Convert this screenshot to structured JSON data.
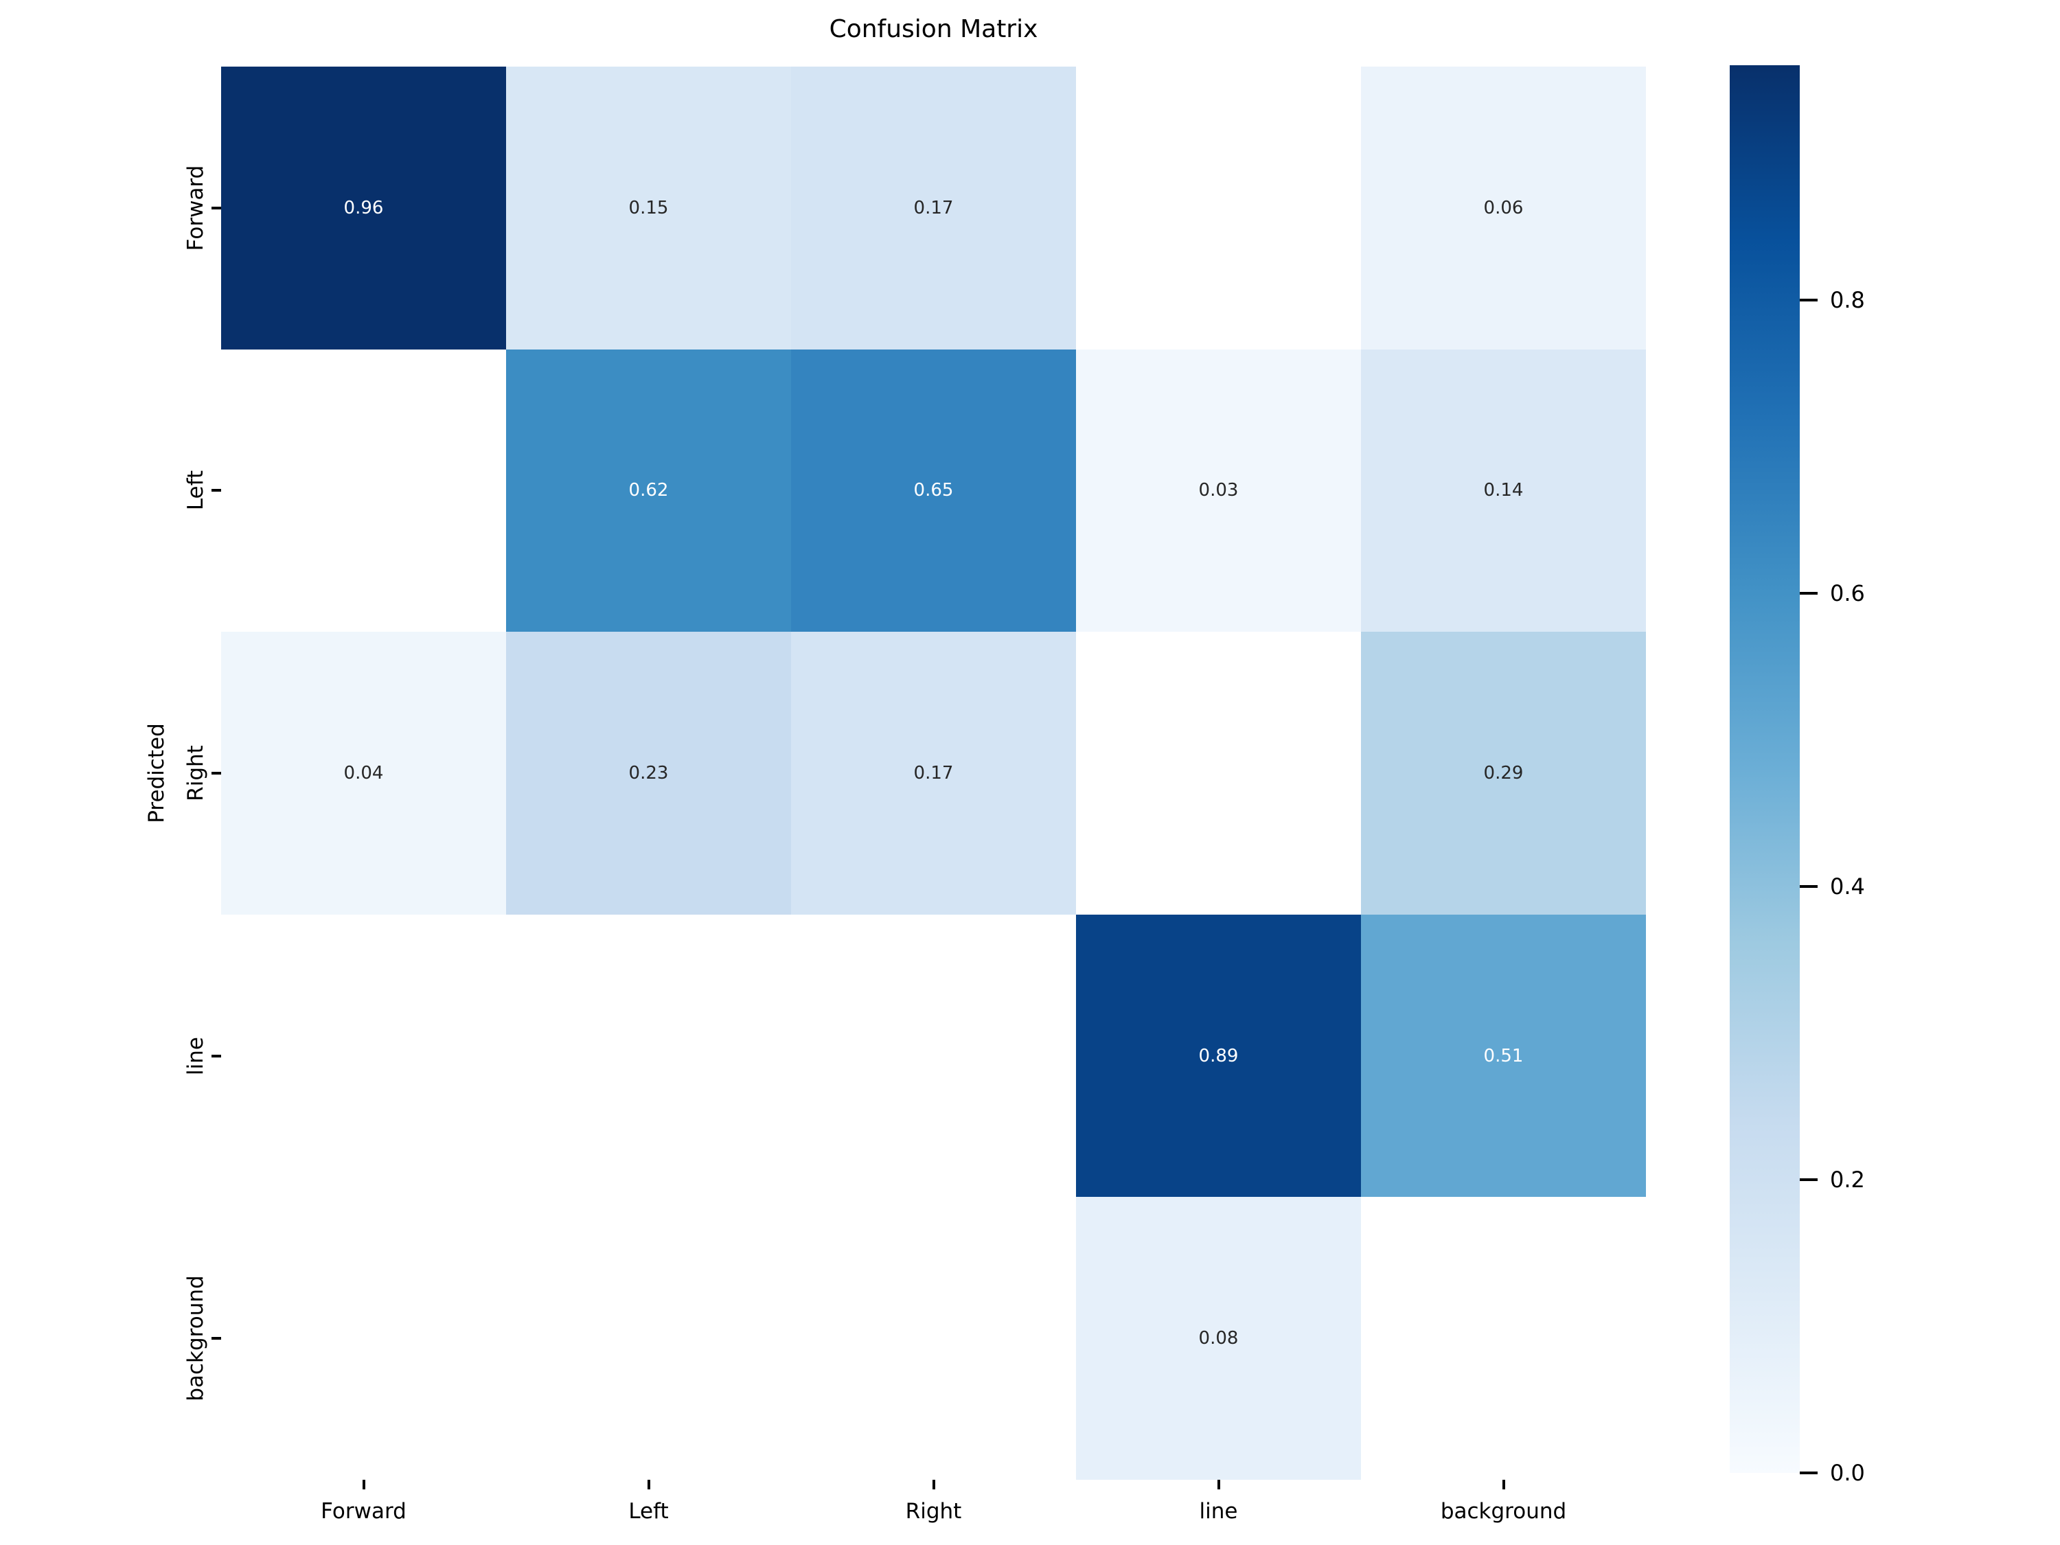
{
  "title": "Confusion Matrix",
  "ylabel": "Predicted",
  "chart_data": {
    "type": "heatmap",
    "title": "Confusion Matrix",
    "ylabel": "Predicted",
    "xlabel": "",
    "x_categories": [
      "Forward",
      "Left",
      "Right",
      "line",
      "background"
    ],
    "y_categories": [
      "Forward",
      "Left",
      "Right",
      "line",
      "background"
    ],
    "matrix": [
      [
        0.96,
        0.15,
        0.17,
        null,
        0.06
      ],
      [
        null,
        0.62,
        0.65,
        0.03,
        0.14
      ],
      [
        0.04,
        0.23,
        0.17,
        null,
        0.29
      ],
      [
        null,
        null,
        null,
        0.89,
        0.51
      ],
      [
        null,
        null,
        null,
        0.08,
        null
      ]
    ],
    "value_decimals": 2,
    "colormap": "Blues",
    "vmin": 0.0,
    "vmax": 0.96,
    "legend_position": "right-colorbar",
    "grid": false,
    "colorbar_ticks": [
      "0.0",
      "0.2",
      "0.4",
      "0.6",
      "0.8"
    ],
    "colors": {
      "cmap_stops": [
        "#f7fbff",
        "#deebf7",
        "#c6dbef",
        "#9ecae1",
        "#6baed6",
        "#4292c6",
        "#2171b5",
        "#08519c",
        "#08306b"
      ],
      "masked_cell": "#ffffff",
      "annotation_dark": "#262626",
      "annotation_light": "#ffffff",
      "tick_color": "#000000"
    }
  }
}
